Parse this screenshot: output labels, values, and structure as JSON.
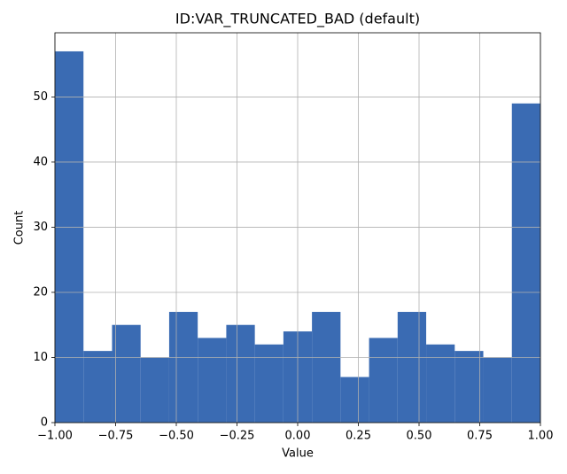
{
  "chart_data": {
    "type": "histogram",
    "title": "ID:VAR_TRUNCATED_BAD (default)",
    "x_label": "Value",
    "y_label": "Count",
    "bins": [
      -1,
      -0.882353,
      -0.764706,
      -0.647059,
      -0.529412,
      -0.411765,
      -0.294118,
      -0.176471,
      -0.058824,
      0.058824,
      0.176471,
      0.294118,
      0.411765,
      0.529412,
      0.647059,
      0.764706,
      0.882353,
      1
    ],
    "values": [
      57,
      11,
      15,
      10,
      17,
      13,
      15,
      12,
      14,
      17,
      7,
      13,
      17,
      12,
      11,
      10,
      49
    ],
    "color": "#3a6bb3",
    "xlim": [
      -1,
      1
    ],
    "xticks": [
      {
        "value": -1,
        "label": "−1.00"
      },
      {
        "value": -0.75,
        "label": "−0.75"
      },
      {
        "value": -0.5,
        "label": "−0.50"
      },
      {
        "value": -0.25,
        "label": "−0.25"
      },
      {
        "value": 0,
        "label": "0.00"
      },
      {
        "value": 0.25,
        "label": "0.25"
      },
      {
        "value": 0.5,
        "label": "0.50"
      },
      {
        "value": 0.75,
        "label": "0.75"
      },
      {
        "value": 1,
        "label": "1.00"
      }
    ],
    "ylim": [
      0,
      59.85
    ],
    "yticks": [
      0,
      10,
      20,
      30,
      40,
      50
    ],
    "grid": true
  }
}
